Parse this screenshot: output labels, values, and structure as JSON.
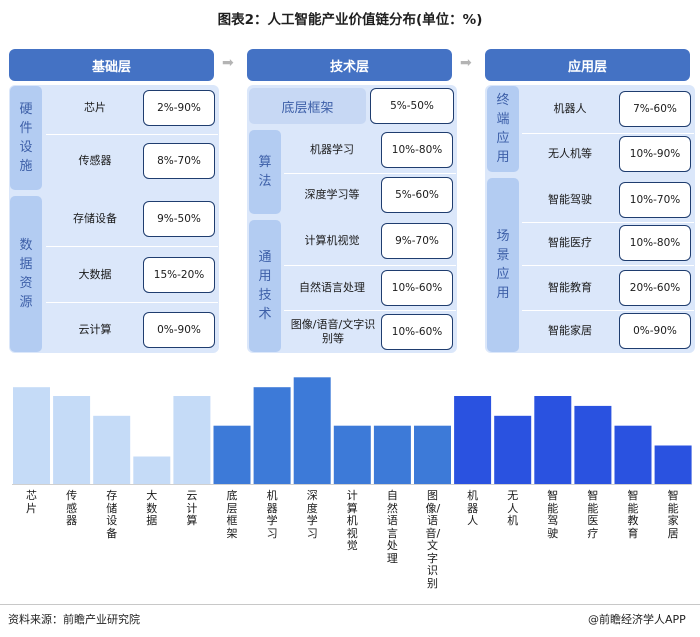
{
  "title": "图表2：人工智能产业价值链分布(单位：%)",
  "columns": {
    "base": {
      "header": "基础层"
    },
    "tech": {
      "header": "技术层"
    },
    "app": {
      "header": "应用层"
    }
  },
  "groups": {
    "hardware": "硬件设施",
    "data_resources": "数据资源",
    "framework": "底层框架",
    "algorithm": "算法",
    "general_tech": "通用技术",
    "terminal_app": "终端应用",
    "scene_app": "场景应用"
  },
  "items": {
    "base": [
      {
        "name": "芯片",
        "range": "2%-90%"
      },
      {
        "name": "传感器",
        "range": "8%-70%"
      },
      {
        "name": "存储设备",
        "range": "9%-50%"
      },
      {
        "name": "大数据",
        "range": "15%-20%"
      },
      {
        "name": "云计算",
        "range": "0%-90%"
      }
    ],
    "tech_framework": {
      "range": "5%-50%"
    },
    "tech": [
      {
        "name": "机器学习",
        "range": "10%-80%"
      },
      {
        "name": "深度学习等",
        "range": "5%-60%"
      },
      {
        "name": "计算机视觉",
        "range": "9%-70%"
      },
      {
        "name": "自然语言处理",
        "range": "10%-60%"
      },
      {
        "name": "图像/语音/文字识别等",
        "range": "10%-60%"
      }
    ],
    "app": [
      {
        "name": "机器人",
        "range": "7%-60%"
      },
      {
        "name": "无人机等",
        "range": "10%-90%"
      },
      {
        "name": "智能驾驶",
        "range": "10%-70%"
      },
      {
        "name": "智能医疗",
        "range": "10%-80%"
      },
      {
        "name": "智能教育",
        "range": "20%-60%"
      },
      {
        "name": "智能家居",
        "range": "0%-90%"
      }
    ]
  },
  "chart_data": {
    "type": "bar",
    "categories": [
      "芯片",
      "传感器",
      "存储设备",
      "大数据",
      "云计算",
      "底层框架",
      "机器学习",
      "深度学习",
      "计算机视觉",
      "自然语言处理",
      "图像/语音/文字识别",
      "机器人",
      "无人机",
      "智能驾驶",
      "智能医疗",
      "智能教育",
      "智能家居"
    ],
    "values": [
      88,
      80,
      62,
      25,
      80,
      53,
      88,
      97,
      53,
      53,
      53,
      80,
      62,
      80,
      71,
      53,
      35
    ],
    "ylim": [
      0,
      100
    ],
    "colors": [
      "#c5dbf7",
      "#c5dbf7",
      "#c5dbf7",
      "#c5dbf7",
      "#c5dbf7",
      "#3d7ad8",
      "#3d7ad8",
      "#3d7ad8",
      "#3d7ad8",
      "#3d7ad8",
      "#3d7ad8",
      "#2a52e0",
      "#2a52e0",
      "#2a52e0",
      "#2a52e0",
      "#2a52e0",
      "#2a52e0"
    ],
    "grid": false,
    "legend": "none"
  },
  "footer": {
    "source": "资料来源：前瞻产业研究院",
    "brand": "@前瞻经济学人APP"
  },
  "watermark": "前瞻产业研究院",
  "colors": {
    "header": "#4472c4",
    "panel": "#dbe7fa",
    "label": "#b3ccf2",
    "box_border": "#1f3d6f"
  }
}
